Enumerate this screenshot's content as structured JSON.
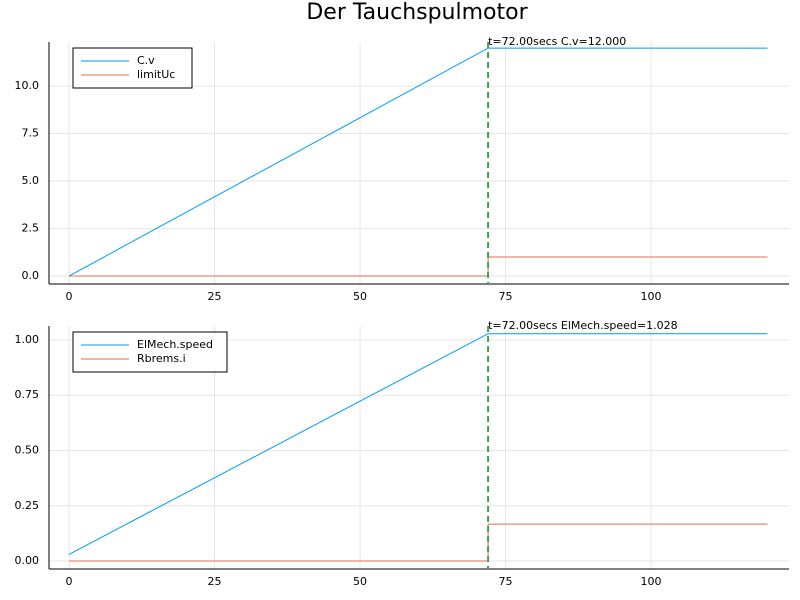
{
  "title": "Der Tauchspulmotor",
  "chart_data": [
    {
      "type": "line",
      "xlim": [
        -3.44,
        123.7
      ],
      "xticks": [
        0,
        25,
        50,
        75,
        100
      ],
      "ylim": [
        -0.42,
        12.32
      ],
      "yticks": [
        {
          "value": 0,
          "label": "0.0"
        },
        2.5,
        {
          "value": 5,
          "label": "5.0"
        },
        7.5,
        {
          "value": 10,
          "label": "10.0"
        }
      ],
      "grid": true,
      "legend": "top-left",
      "vline": 72,
      "vline_color": "#3da44d",
      "annotation": "t=72.00secs  C.v=12.000",
      "annotation_color": "#ff0000",
      "series": [
        {
          "name": "C.v",
          "color": "#009af9",
          "x": [
            0,
            72,
            120
          ],
          "values": [
            0,
            12,
            12
          ]
        },
        {
          "name": "limitUc",
          "color": "#e26f46",
          "x": [
            0,
            72,
            72,
            120
          ],
          "values": [
            0,
            0,
            1,
            1
          ]
        }
      ]
    },
    {
      "type": "line",
      "xlim": [
        -3.44,
        123.7
      ],
      "xticks": [
        0,
        25,
        50,
        75,
        100
      ],
      "ylim": [
        -0.036,
        1.063
      ],
      "yticks": [
        {
          "value": 0,
          "label": "0.00"
        },
        0.25,
        {
          "value": 0.5,
          "label": "0.50"
        },
        0.75,
        {
          "value": 1,
          "label": "1.00"
        }
      ],
      "grid": true,
      "legend": "top-left",
      "vline": 72,
      "vline_color": "#3da44d",
      "annotation": "t=72.00secs  ElMech.speed=1.028",
      "annotation_color": "#ff0000",
      "series": [
        {
          "name": "ElMech.speed",
          "color": "#009af9",
          "x": [
            0,
            72,
            120
          ],
          "values": [
            0.03,
            1.028,
            1.028
          ]
        },
        {
          "name": "Rbrems.i",
          "color": "#e26f46",
          "x": [
            0,
            72,
            72,
            120
          ],
          "values": [
            0,
            0,
            0.167,
            0.167
          ]
        }
      ]
    }
  ]
}
